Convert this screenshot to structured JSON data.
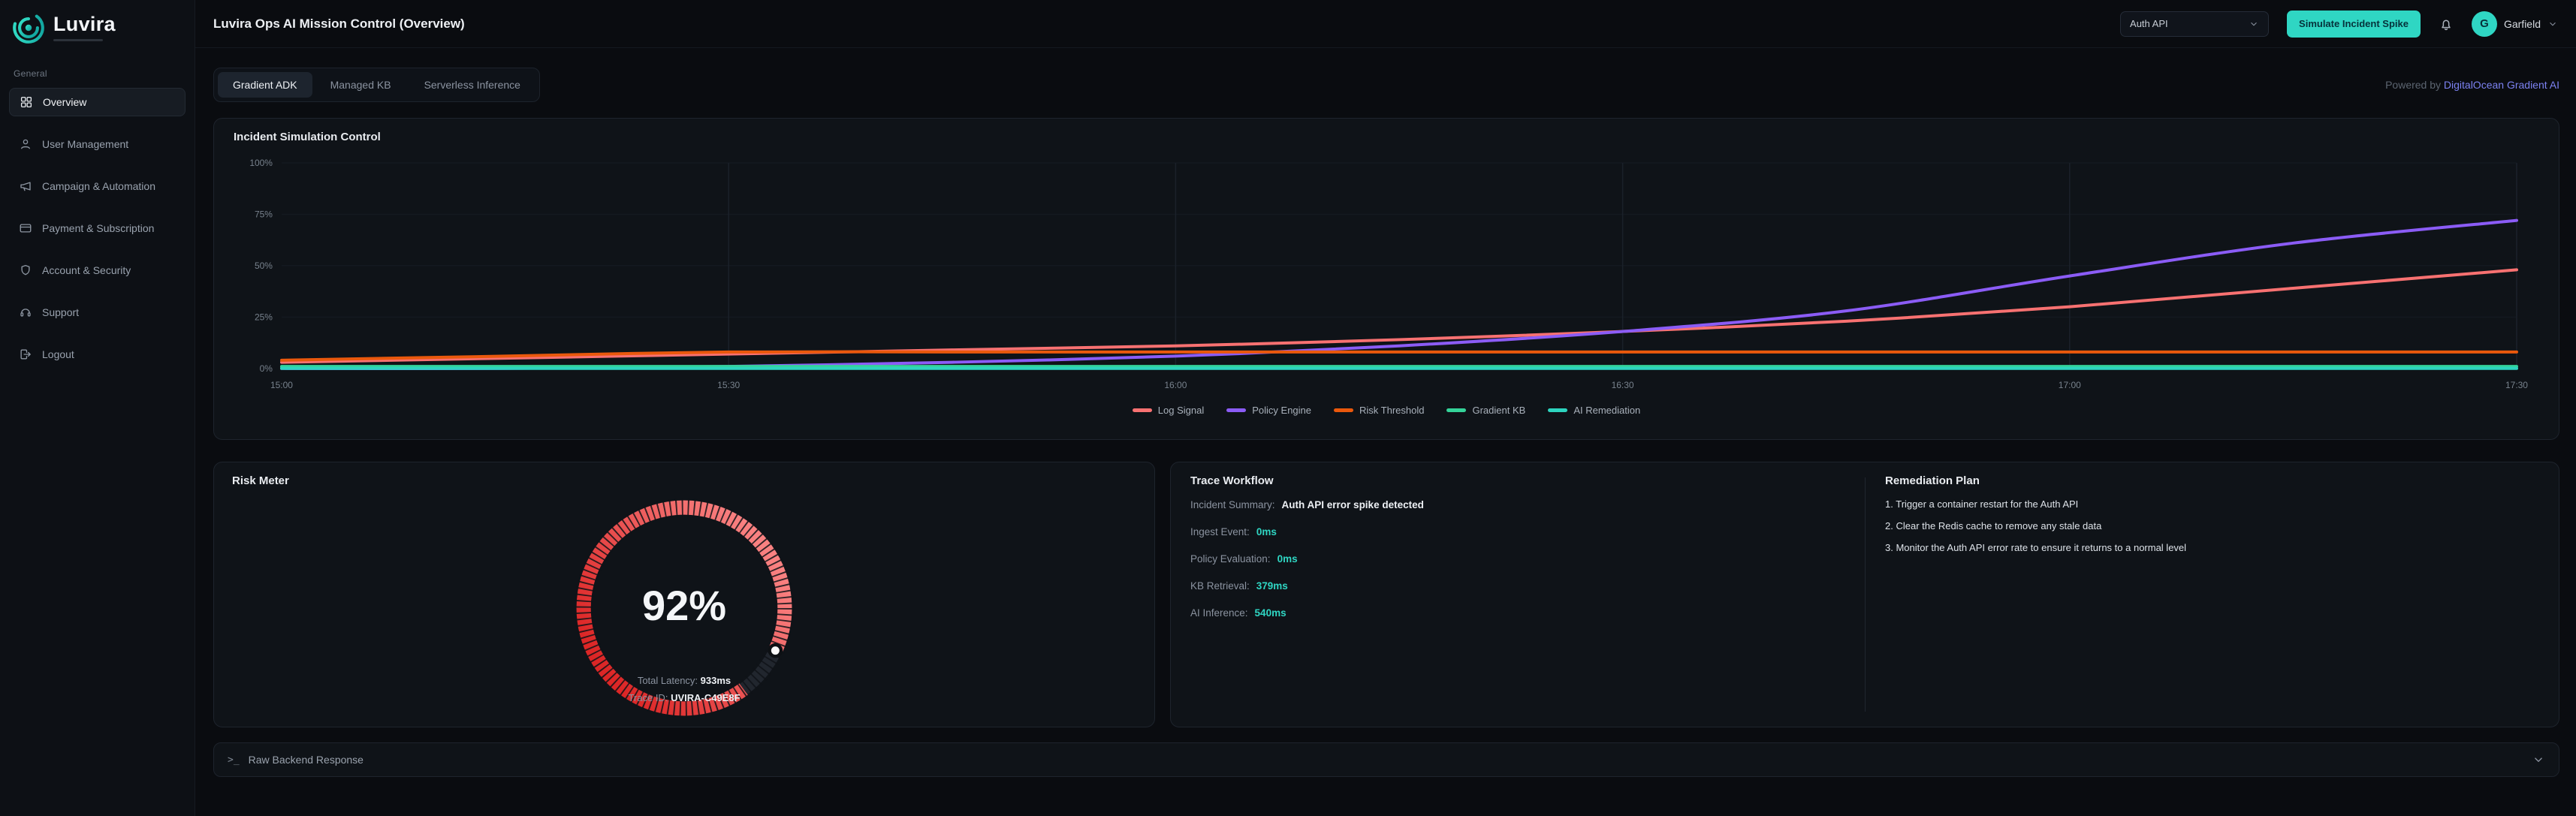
{
  "colors": {
    "accent": "#2fd6c3",
    "risk": "#ef4444",
    "powered_brand": "#7c82f2"
  },
  "app": {
    "brand": "Luvira",
    "title": "Luvira Ops AI Mission Control (Overview)"
  },
  "header": {
    "service_select": {
      "value": "Auth API"
    },
    "simulate_button_label": "Simulate Incident Spike",
    "user": {
      "name": "Garfield",
      "avatar_initial": "G"
    }
  },
  "sidebar": {
    "section_label": "General",
    "items": [
      {
        "label": "Overview",
        "icon": "grid-icon",
        "active": true
      },
      {
        "label": "User Management",
        "icon": "user-icon",
        "active": false
      },
      {
        "label": "Campaign & Automation",
        "icon": "megaphone-icon",
        "active": false
      },
      {
        "label": "Payment & Subscription",
        "icon": "credit-card-icon",
        "active": false
      },
      {
        "label": "Account & Security",
        "icon": "shield-icon",
        "active": false
      },
      {
        "label": "Support",
        "icon": "headset-icon",
        "active": false
      },
      {
        "label": "Logout",
        "icon": "logout-icon",
        "active": false
      }
    ]
  },
  "tabs": [
    {
      "label": "Gradient ADK",
      "active": true
    },
    {
      "label": "Managed KB",
      "active": false
    },
    {
      "label": "Serverless Inference",
      "active": false
    }
  ],
  "powered_by": {
    "prefix": "Powered by ",
    "brand": "DigitalOcean Gradient AI"
  },
  "incident_card": {
    "title": "Incident Simulation Control"
  },
  "chart_data": {
    "type": "line",
    "x": [
      "15:00",
      "15:15",
      "15:30",
      "15:45",
      "16:00",
      "16:15",
      "16:30",
      "16:45",
      "17:00",
      "17:15",
      "17:30"
    ],
    "x_ticks": [
      "15:00",
      "15:30",
      "16:00",
      "16:30",
      "17:00",
      "17:30"
    ],
    "y_ticks": [
      "0%",
      "25%",
      "50%",
      "75%",
      "100%"
    ],
    "ylim": [
      0,
      100
    ],
    "grid": true,
    "legend_position": "bottom",
    "series": [
      {
        "name": "Log Signal",
        "color": "#f87171",
        "values": [
          3,
          5,
          7,
          9,
          11,
          14,
          18,
          23,
          30,
          39,
          48
        ]
      },
      {
        "name": "Policy Engine",
        "color": "#8b5cf6",
        "values": [
          0,
          0,
          1,
          3,
          6,
          11,
          18,
          28,
          45,
          61,
          72
        ]
      },
      {
        "name": "Risk Threshold",
        "color": "#ea580c",
        "values": [
          4,
          6,
          8,
          8,
          8,
          8,
          8,
          8,
          8,
          8,
          8
        ]
      },
      {
        "name": "Gradient KB",
        "color": "#34d399",
        "values": [
          1,
          1,
          1,
          1,
          1,
          1,
          1,
          1,
          1,
          1,
          1
        ]
      },
      {
        "name": "AI Remediation",
        "color": "#2dd4bf",
        "values": [
          0,
          0,
          0,
          0,
          0,
          0,
          0,
          0,
          0,
          0,
          0
        ]
      }
    ]
  },
  "risk_meter": {
    "title": "Risk Meter",
    "value_pct": 92,
    "value_label": "92%",
    "total_latency_label": "Total Latency:",
    "total_latency_value": "933ms",
    "trace_id_label": "Trace ID:",
    "trace_id_value": "UVIRA-C49E8F"
  },
  "trace_workflow": {
    "title": "Trace Workflow",
    "rows": [
      {
        "label": "Incident Summary:",
        "value": "Auth API error spike detected",
        "type": "text"
      },
      {
        "label": "Ingest Event:",
        "value": "0ms",
        "type": "ms"
      },
      {
        "label": "Policy Evaluation:",
        "value": "0ms",
        "type": "ms"
      },
      {
        "label": "KB Retrieval:",
        "value": "379ms",
        "type": "ms"
      },
      {
        "label": "AI Inference:",
        "value": "540ms",
        "type": "ms"
      }
    ]
  },
  "remediation_plan": {
    "title": "Remediation Plan",
    "steps": [
      "Trigger a container restart for the Auth API",
      "Clear the Redis cache to remove any stale data",
      "Monitor the Auth API error rate to ensure it returns to a normal level"
    ]
  },
  "raw_response": {
    "label": "Raw Backend Response",
    "prompt_icon": ">_"
  }
}
